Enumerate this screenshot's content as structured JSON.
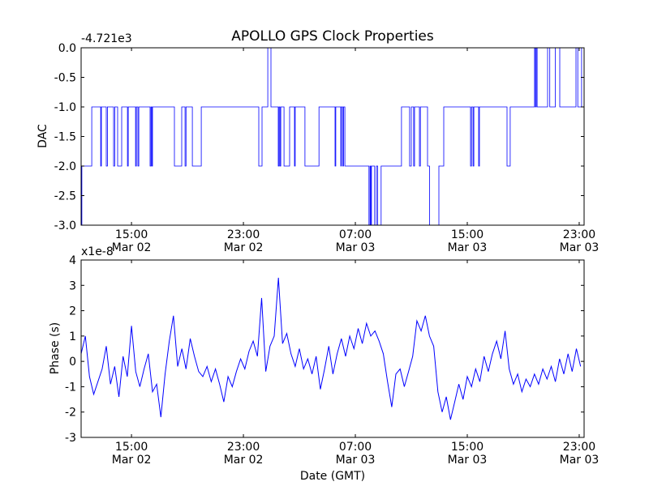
{
  "chart_data": [
    {
      "type": "line",
      "title": "APOLLO GPS Clock Properties",
      "ylabel": "DAC",
      "xlabel": "",
      "offset_text": "-4.721e3",
      "x_unit": "hours since Mar 02 00:00 GMT",
      "xlim": [
        11.4,
        47.35
      ],
      "ylim": [
        -3.0,
        0.0
      ],
      "yticks": [
        0.0,
        -0.5,
        -1.0,
        -1.5,
        -2.0,
        -2.5,
        -3.0
      ],
      "ytick_labels": [
        "0.0",
        "-0.5",
        "-1.0",
        "-1.5",
        "-2.0",
        "-2.5",
        "-3.0"
      ],
      "xticks": [
        15,
        23,
        31,
        39,
        47
      ],
      "xtick_labels": [
        [
          "15:00",
          "Mar 02"
        ],
        [
          "23:00",
          "Mar 02"
        ],
        [
          "07:00",
          "Mar 03"
        ],
        [
          "15:00",
          "Mar 03"
        ],
        [
          "23:00",
          "Mar 03"
        ]
      ],
      "color": "#0000ff",
      "step_series": [
        [
          11.41,
          -3
        ],
        [
          11.45,
          -2
        ],
        [
          12.16,
          -1
        ],
        [
          12.8,
          -2
        ],
        [
          12.85,
          -1
        ],
        [
          13.2,
          -2
        ],
        [
          13.28,
          -1
        ],
        [
          13.72,
          -2
        ],
        [
          13.8,
          -1
        ],
        [
          14.01,
          -2
        ],
        [
          14.3,
          -1
        ],
        [
          14.71,
          -2
        ],
        [
          14.77,
          -1
        ],
        [
          15.29,
          -2
        ],
        [
          15.35,
          -1
        ],
        [
          15.46,
          -2
        ],
        [
          15.52,
          -1
        ],
        [
          16.33,
          -2
        ],
        [
          16.39,
          -1
        ],
        [
          16.45,
          -2
        ],
        [
          16.5,
          -1
        ],
        [
          18.07,
          -2
        ],
        [
          18.59,
          -1
        ],
        [
          18.83,
          -2
        ],
        [
          18.9,
          -1
        ],
        [
          19.35,
          -2
        ],
        [
          19.99,
          -1
        ],
        [
          24.1,
          -2
        ],
        [
          24.33,
          -1
        ],
        [
          24.74,
          0
        ],
        [
          24.97,
          -1
        ],
        [
          25.49,
          -2
        ],
        [
          25.55,
          -1
        ],
        [
          25.61,
          -2
        ],
        [
          25.67,
          -1
        ],
        [
          25.9,
          -2
        ],
        [
          26.3,
          -1
        ],
        [
          26.65,
          -2
        ],
        [
          26.7,
          -1
        ],
        [
          27.4,
          -2
        ],
        [
          28.4,
          -1
        ],
        [
          29.55,
          -2
        ],
        [
          29.6,
          -1
        ],
        [
          29.96,
          -2
        ],
        [
          30.0,
          -1
        ],
        [
          30.1,
          -2
        ],
        [
          30.15,
          -1
        ],
        [
          30.25,
          -2
        ],
        [
          31.97,
          -3
        ],
        [
          32.05,
          -2
        ],
        [
          32.1,
          -3
        ],
        [
          32.15,
          -2
        ],
        [
          32.38,
          -3
        ],
        [
          32.5,
          -2
        ],
        [
          32.6,
          -3
        ],
        [
          32.84,
          -2
        ],
        [
          33.3,
          -2
        ],
        [
          34.3,
          -1
        ],
        [
          34.88,
          -2
        ],
        [
          35.0,
          -1
        ],
        [
          35.17,
          -2
        ],
        [
          35.23,
          -1
        ],
        [
          35.58,
          -2
        ],
        [
          35.65,
          -1
        ],
        [
          36.16,
          -2
        ],
        [
          36.3,
          -3
        ],
        [
          36.97,
          -2
        ],
        [
          37.32,
          -1
        ],
        [
          39.23,
          -2
        ],
        [
          39.3,
          -1
        ],
        [
          39.41,
          -2
        ],
        [
          39.47,
          -1
        ],
        [
          39.81,
          -2
        ],
        [
          39.87,
          -1
        ],
        [
          41.84,
          -2
        ],
        [
          42.07,
          -1
        ],
        [
          43.81,
          0
        ],
        [
          43.87,
          -1
        ],
        [
          43.93,
          0
        ],
        [
          43.99,
          -1
        ],
        [
          44.74,
          0
        ],
        [
          44.9,
          -1
        ],
        [
          45.3,
          0
        ],
        [
          45.61,
          -1
        ],
        [
          46.77,
          0
        ],
        [
          46.9,
          -1
        ],
        [
          47.17,
          0
        ],
        [
          47.35,
          0
        ]
      ]
    },
    {
      "type": "line",
      "title": "",
      "ylabel": "Phase (s)",
      "xlabel": "Date (GMT)",
      "offset_text": "x1e-8",
      "x_unit": "hours since Mar 02 00:00 GMT",
      "xlim": [
        11.4,
        47.35
      ],
      "ylim": [
        -3,
        4
      ],
      "yticks": [
        4,
        3,
        2,
        1,
        0,
        -1,
        -2,
        -3
      ],
      "ytick_labels": [
        "4",
        "3",
        "2",
        "1",
        "0",
        "-1",
        "-2",
        "-3"
      ],
      "xticks": [
        15,
        23,
        31,
        39,
        47
      ],
      "xtick_labels": [
        [
          "15:00",
          "Mar 02"
        ],
        [
          "23:00",
          "Mar 02"
        ],
        [
          "07:00",
          "Mar 03"
        ],
        [
          "15:00",
          "Mar 03"
        ],
        [
          "23:00",
          "Mar 03"
        ]
      ],
      "color": "#0000ff",
      "t0": 11.4,
      "dt": 0.3,
      "values": [
        0.3,
        1.0,
        -0.6,
        -1.3,
        -0.8,
        -0.3,
        0.6,
        -0.9,
        -0.2,
        -1.4,
        0.2,
        -0.6,
        1.4,
        -0.4,
        -1.0,
        -0.3,
        0.3,
        -1.2,
        -0.9,
        -2.2,
        -0.5,
        0.8,
        1.8,
        -0.2,
        0.5,
        -0.3,
        0.9,
        0.2,
        -0.4,
        -0.6,
        -0.2,
        -0.8,
        -0.3,
        -0.9,
        -1.6,
        -0.6,
        -1.0,
        -0.4,
        0.1,
        -0.3,
        0.4,
        0.8,
        0.2,
        2.5,
        -0.4,
        0.6,
        1.0,
        3.3,
        0.7,
        1.1,
        0.3,
        -0.2,
        0.5,
        -0.3,
        0.1,
        -0.5,
        0.2,
        -1.1,
        -0.3,
        0.6,
        -0.5,
        0.3,
        0.9,
        0.2,
        1.0,
        0.5,
        1.3,
        0.7,
        1.5,
        1.0,
        1.2,
        0.8,
        0.3,
        -0.8,
        -1.8,
        -0.5,
        -0.3,
        -1.0,
        -0.4,
        0.2,
        1.6,
        1.2,
        1.8,
        1.0,
        0.6,
        -1.2,
        -2.0,
        -1.4,
        -2.3,
        -1.6,
        -0.9,
        -1.5,
        -0.6,
        -1.0,
        -0.3,
        -0.8,
        0.2,
        -0.4,
        0.3,
        0.8,
        0.1,
        1.2,
        -0.3,
        -0.9,
        -0.5,
        -1.2,
        -0.7,
        -1.0,
        -0.5,
        -0.9,
        -0.3,
        -0.7,
        -0.2,
        -0.8,
        0.1,
        -0.5,
        0.3,
        -0.4,
        0.5,
        -0.2
      ]
    }
  ]
}
